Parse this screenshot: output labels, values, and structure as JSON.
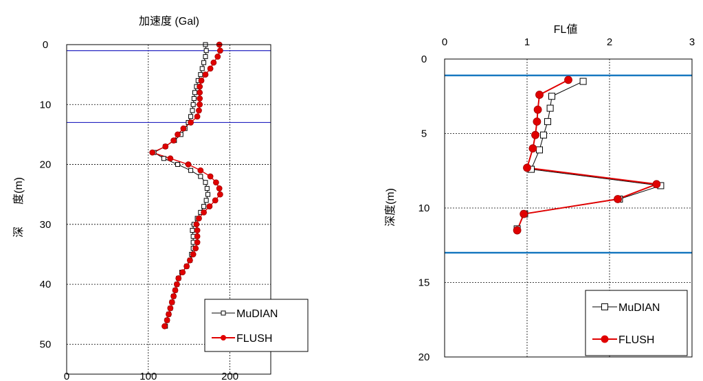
{
  "chart_data": [
    {
      "type": "line",
      "title": "加速度 (Gal)",
      "ylabel": "深　　度(m)",
      "xlim": [
        0,
        250
      ],
      "ylim": [
        55,
        0
      ],
      "y_reversed": true,
      "x_ticks": [
        0,
        100,
        200
      ],
      "y_ticks": [
        0,
        10,
        20,
        30,
        40,
        50
      ],
      "grid": true,
      "legend": "bottom-right",
      "reference_lines": [
        {
          "axis": "y",
          "value": 1,
          "color": "#2020c0"
        },
        {
          "axis": "y",
          "value": 13,
          "color": "#2020c0"
        }
      ],
      "series": [
        {
          "name": "MuDIAN",
          "color": "#000000",
          "marker": "square",
          "points": [
            [
              170,
              0
            ],
            [
              171,
              1
            ],
            [
              170,
              2
            ],
            [
              168,
              3
            ],
            [
              166,
              4
            ],
            [
              164,
              5
            ],
            [
              161,
              6
            ],
            [
              159,
              7
            ],
            [
              157,
              8
            ],
            [
              156,
              9
            ],
            [
              155,
              10
            ],
            [
              154,
              11
            ],
            [
              152,
              12
            ],
            [
              149,
              13
            ],
            [
              145,
              14
            ],
            [
              140,
              15
            ],
            [
              132,
              16
            ],
            [
              121,
              17
            ],
            [
              107,
              18
            ],
            [
              119,
              19
            ],
            [
              136,
              20
            ],
            [
              152,
              21
            ],
            [
              164,
              22
            ],
            [
              170,
              23
            ],
            [
              172,
              24
            ],
            [
              173,
              25
            ],
            [
              171,
              26
            ],
            [
              168,
              27
            ],
            [
              164,
              28
            ],
            [
              160,
              29
            ],
            [
              156,
              30
            ],
            [
              154,
              31
            ],
            [
              155,
              32
            ],
            [
              155,
              33
            ],
            [
              155,
              34
            ],
            [
              153,
              35
            ],
            [
              151,
              36
            ],
            [
              147,
              37
            ],
            [
              141,
              38
            ],
            [
              137,
              39
            ],
            [
              135,
              40
            ],
            [
              133,
              41
            ],
            [
              131,
              42
            ],
            [
              129,
              43
            ],
            [
              127,
              44
            ],
            [
              125,
              45
            ],
            [
              123,
              46
            ],
            [
              121,
              47
            ]
          ]
        },
        {
          "name": "FLUSH",
          "color": "#e00000",
          "marker": "circle",
          "points": [
            [
              187,
              0
            ],
            [
              188,
              1
            ],
            [
              185,
              2
            ],
            [
              180,
              3
            ],
            [
              176,
              4
            ],
            [
              170,
              5
            ],
            [
              165,
              6
            ],
            [
              163,
              7
            ],
            [
              163,
              8
            ],
            [
              163,
              9
            ],
            [
              163,
              10
            ],
            [
              162,
              11
            ],
            [
              160,
              12
            ],
            [
              152,
              13
            ],
            [
              143,
              14
            ],
            [
              136,
              15
            ],
            [
              131,
              16
            ],
            [
              121,
              17
            ],
            [
              105,
              18
            ],
            [
              127,
              19
            ],
            [
              149,
              20
            ],
            [
              164,
              21
            ],
            [
              176,
              22
            ],
            [
              183,
              23
            ],
            [
              187,
              24
            ],
            [
              188,
              25
            ],
            [
              182,
              26
            ],
            [
              175,
              27
            ],
            [
              168,
              28
            ],
            [
              162,
              29
            ],
            [
              159,
              30
            ],
            [
              160,
              31
            ],
            [
              160,
              32
            ],
            [
              160,
              33
            ],
            [
              158,
              34
            ],
            [
              155,
              35
            ],
            [
              151,
              36
            ],
            [
              147,
              37
            ],
            [
              142,
              38
            ],
            [
              137,
              39
            ],
            [
              135,
              40
            ],
            [
              133,
              41
            ],
            [
              131,
              42
            ],
            [
              129,
              43
            ],
            [
              127,
              44
            ],
            [
              125,
              45
            ],
            [
              123,
              46
            ],
            [
              120,
              47
            ]
          ]
        }
      ]
    },
    {
      "type": "line",
      "title": "FL値",
      "ylabel": "深度(m)",
      "xlim": [
        0,
        3
      ],
      "ylim": [
        20,
        0
      ],
      "y_reversed": true,
      "x_ticks": [
        0,
        1,
        2,
        3
      ],
      "y_ticks": [
        0,
        5,
        10,
        15,
        20
      ],
      "grid": true,
      "legend": "bottom-right",
      "reference_lines": [
        {
          "axis": "y",
          "value": 1.1,
          "color": "#1878c0"
        },
        {
          "axis": "y",
          "value": 13.0,
          "color": "#1878c0"
        }
      ],
      "series": [
        {
          "name": "MuDIAN",
          "color": "#000000",
          "marker": "square",
          "points": [
            [
              1.68,
              1.5
            ],
            [
              1.3,
              2.5
            ],
            [
              1.28,
              3.3
            ],
            [
              1.25,
              4.2
            ],
            [
              1.2,
              5.1
            ],
            [
              1.15,
              6.1
            ],
            [
              1.05,
              7.4
            ],
            [
              2.62,
              8.5
            ],
            [
              2.12,
              9.4
            ],
            [
              0.97,
              10.4
            ],
            [
              0.88,
              11.4
            ]
          ]
        },
        {
          "name": "FLUSH",
          "color": "#e00000",
          "marker": "circle",
          "points": [
            [
              1.5,
              1.4
            ],
            [
              1.15,
              2.4
            ],
            [
              1.13,
              3.4
            ],
            [
              1.12,
              4.2
            ],
            [
              1.1,
              5.1
            ],
            [
              1.07,
              6.0
            ],
            [
              1.0,
              7.3
            ],
            [
              2.57,
              8.4
            ],
            [
              2.1,
              9.4
            ],
            [
              0.96,
              10.4
            ],
            [
              0.88,
              11.5
            ]
          ]
        }
      ]
    }
  ]
}
